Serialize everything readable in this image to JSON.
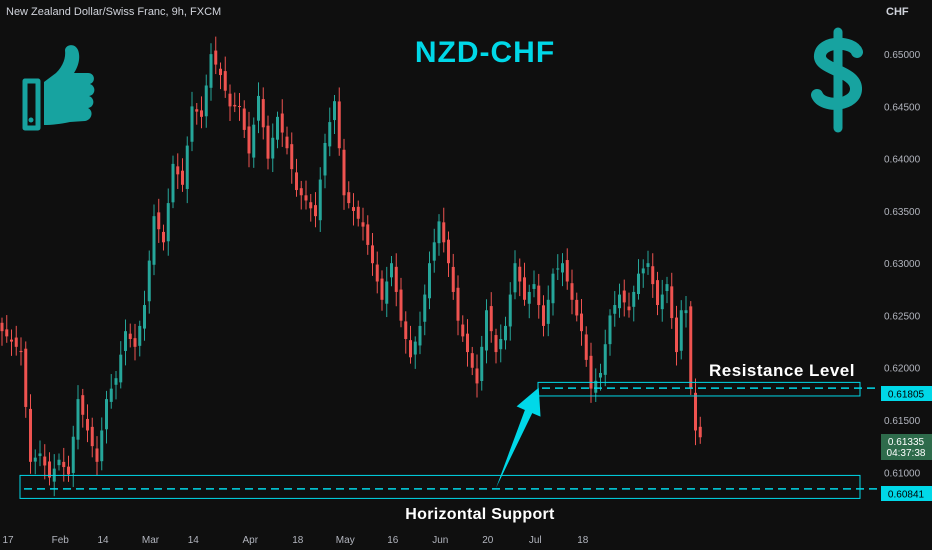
{
  "symbol_title": "New Zealand Dollar/Swiss Franc, 9h, FXCM",
  "currency": "CHF",
  "overlay": {
    "headline": "NZD-CHF",
    "resistance_label": "Resistance Level",
    "support_label": "Horizontal Support"
  },
  "price_labels": {
    "resistance": "0.61805",
    "support": "0.60841",
    "current_price": "0.61335",
    "countdown": "04:37:38"
  },
  "colors": {
    "background": "#0f0f0f",
    "bull": "#26a69a",
    "bear": "#ef5350",
    "accent": "#00d8e8",
    "icon_teal": "#17a3a0",
    "current_bg": "#2e6b4b",
    "text": "#d1d4dc",
    "axis_text": "#b2b5be"
  },
  "icons": [
    "thumbs-up-icon",
    "dollar-icon"
  ],
  "chart_data": {
    "type": "candlestick",
    "title": "NZD-CHF",
    "ylim": [
      0.604,
      0.6525
    ],
    "y_ticks": [
      0.61,
      0.615,
      0.62,
      0.625,
      0.63,
      0.635,
      0.64,
      0.645,
      0.65
    ],
    "y_tick_labels": [
      "0.61000",
      "0.61500",
      "0.62000",
      "0.62500",
      "0.63000",
      "0.63500",
      "0.64000",
      "0.64500",
      "0.65000"
    ],
    "x_tick_labels": [
      "17",
      "Feb",
      "14",
      "Mar",
      "14",
      "Apr",
      "18",
      "May",
      "16",
      "Jun",
      "20",
      "Jul",
      "18"
    ],
    "x_tick_candle_index": [
      0,
      11,
      20,
      30,
      39,
      51,
      61,
      71,
      81,
      91,
      101,
      111,
      121
    ],
    "levels": [
      {
        "name": "Resistance Level",
        "value": 0.61805,
        "zone": [
          0.6173,
          0.6186
        ]
      },
      {
        "name": "Horizontal Support",
        "value": 0.60841,
        "zone": [
          0.6075,
          0.6097
        ]
      }
    ],
    "arrow": {
      "from": [
        104,
        0.6085
      ],
      "to": [
        113,
        0.6181
      ]
    },
    "close_path": [
      [
        0,
        0.6235
      ],
      [
        4,
        0.6215
      ],
      [
        6,
        0.611
      ],
      [
        8,
        0.6118
      ],
      [
        10,
        0.6095
      ],
      [
        12,
        0.6112
      ],
      [
        14,
        0.6098
      ],
      [
        16,
        0.617
      ],
      [
        18,
        0.614
      ],
      [
        20,
        0.611
      ],
      [
        22,
        0.617
      ],
      [
        24,
        0.619
      ],
      [
        26,
        0.6235
      ],
      [
        28,
        0.622
      ],
      [
        30,
        0.626
      ],
      [
        32,
        0.6345
      ],
      [
        34,
        0.632
      ],
      [
        36,
        0.6395
      ],
      [
        38,
        0.6375
      ],
      [
        40,
        0.645
      ],
      [
        42,
        0.644
      ],
      [
        44,
        0.65
      ],
      [
        46,
        0.648
      ],
      [
        48,
        0.645
      ],
      [
        50,
        0.645
      ],
      [
        52,
        0.6405
      ],
      [
        54,
        0.646
      ],
      [
        56,
        0.64
      ],
      [
        58,
        0.644
      ],
      [
        60,
        0.641
      ],
      [
        62,
        0.637
      ],
      [
        64,
        0.636
      ],
      [
        66,
        0.6345
      ],
      [
        68,
        0.6415
      ],
      [
        70,
        0.6455
      ],
      [
        72,
        0.6365
      ],
      [
        74,
        0.635
      ],
      [
        76,
        0.6335
      ],
      [
        78,
        0.63
      ],
      [
        80,
        0.6265
      ],
      [
        82,
        0.63
      ],
      [
        84,
        0.6245
      ],
      [
        86,
        0.621
      ],
      [
        88,
        0.624
      ],
      [
        90,
        0.63
      ],
      [
        92,
        0.634
      ],
      [
        94,
        0.63
      ],
      [
        96,
        0.6245
      ],
      [
        98,
        0.6215
      ],
      [
        100,
        0.6185
      ],
      [
        102,
        0.6255
      ],
      [
        104,
        0.6215
      ],
      [
        106,
        0.624
      ],
      [
        108,
        0.63
      ],
      [
        110,
        0.6265
      ],
      [
        112,
        0.628
      ],
      [
        114,
        0.624
      ],
      [
        116,
        0.629
      ],
      [
        118,
        0.63
      ],
      [
        120,
        0.6265
      ],
      [
        122,
        0.6235
      ],
      [
        124,
        0.618
      ],
      [
        126,
        0.6195
      ],
      [
        128,
        0.625
      ],
      [
        130,
        0.627
      ],
      [
        132,
        0.6255
      ],
      [
        134,
        0.629
      ],
      [
        136,
        0.63
      ],
      [
        138,
        0.626
      ],
      [
        140,
        0.628
      ],
      [
        142,
        0.6215
      ],
      [
        143,
        0.6255
      ],
      [
        144,
        0.6255
      ],
      [
        145,
        0.618
      ],
      [
        146,
        0.614
      ],
      [
        147,
        0.6134
      ]
    ],
    "current_price": 0.61335
  }
}
